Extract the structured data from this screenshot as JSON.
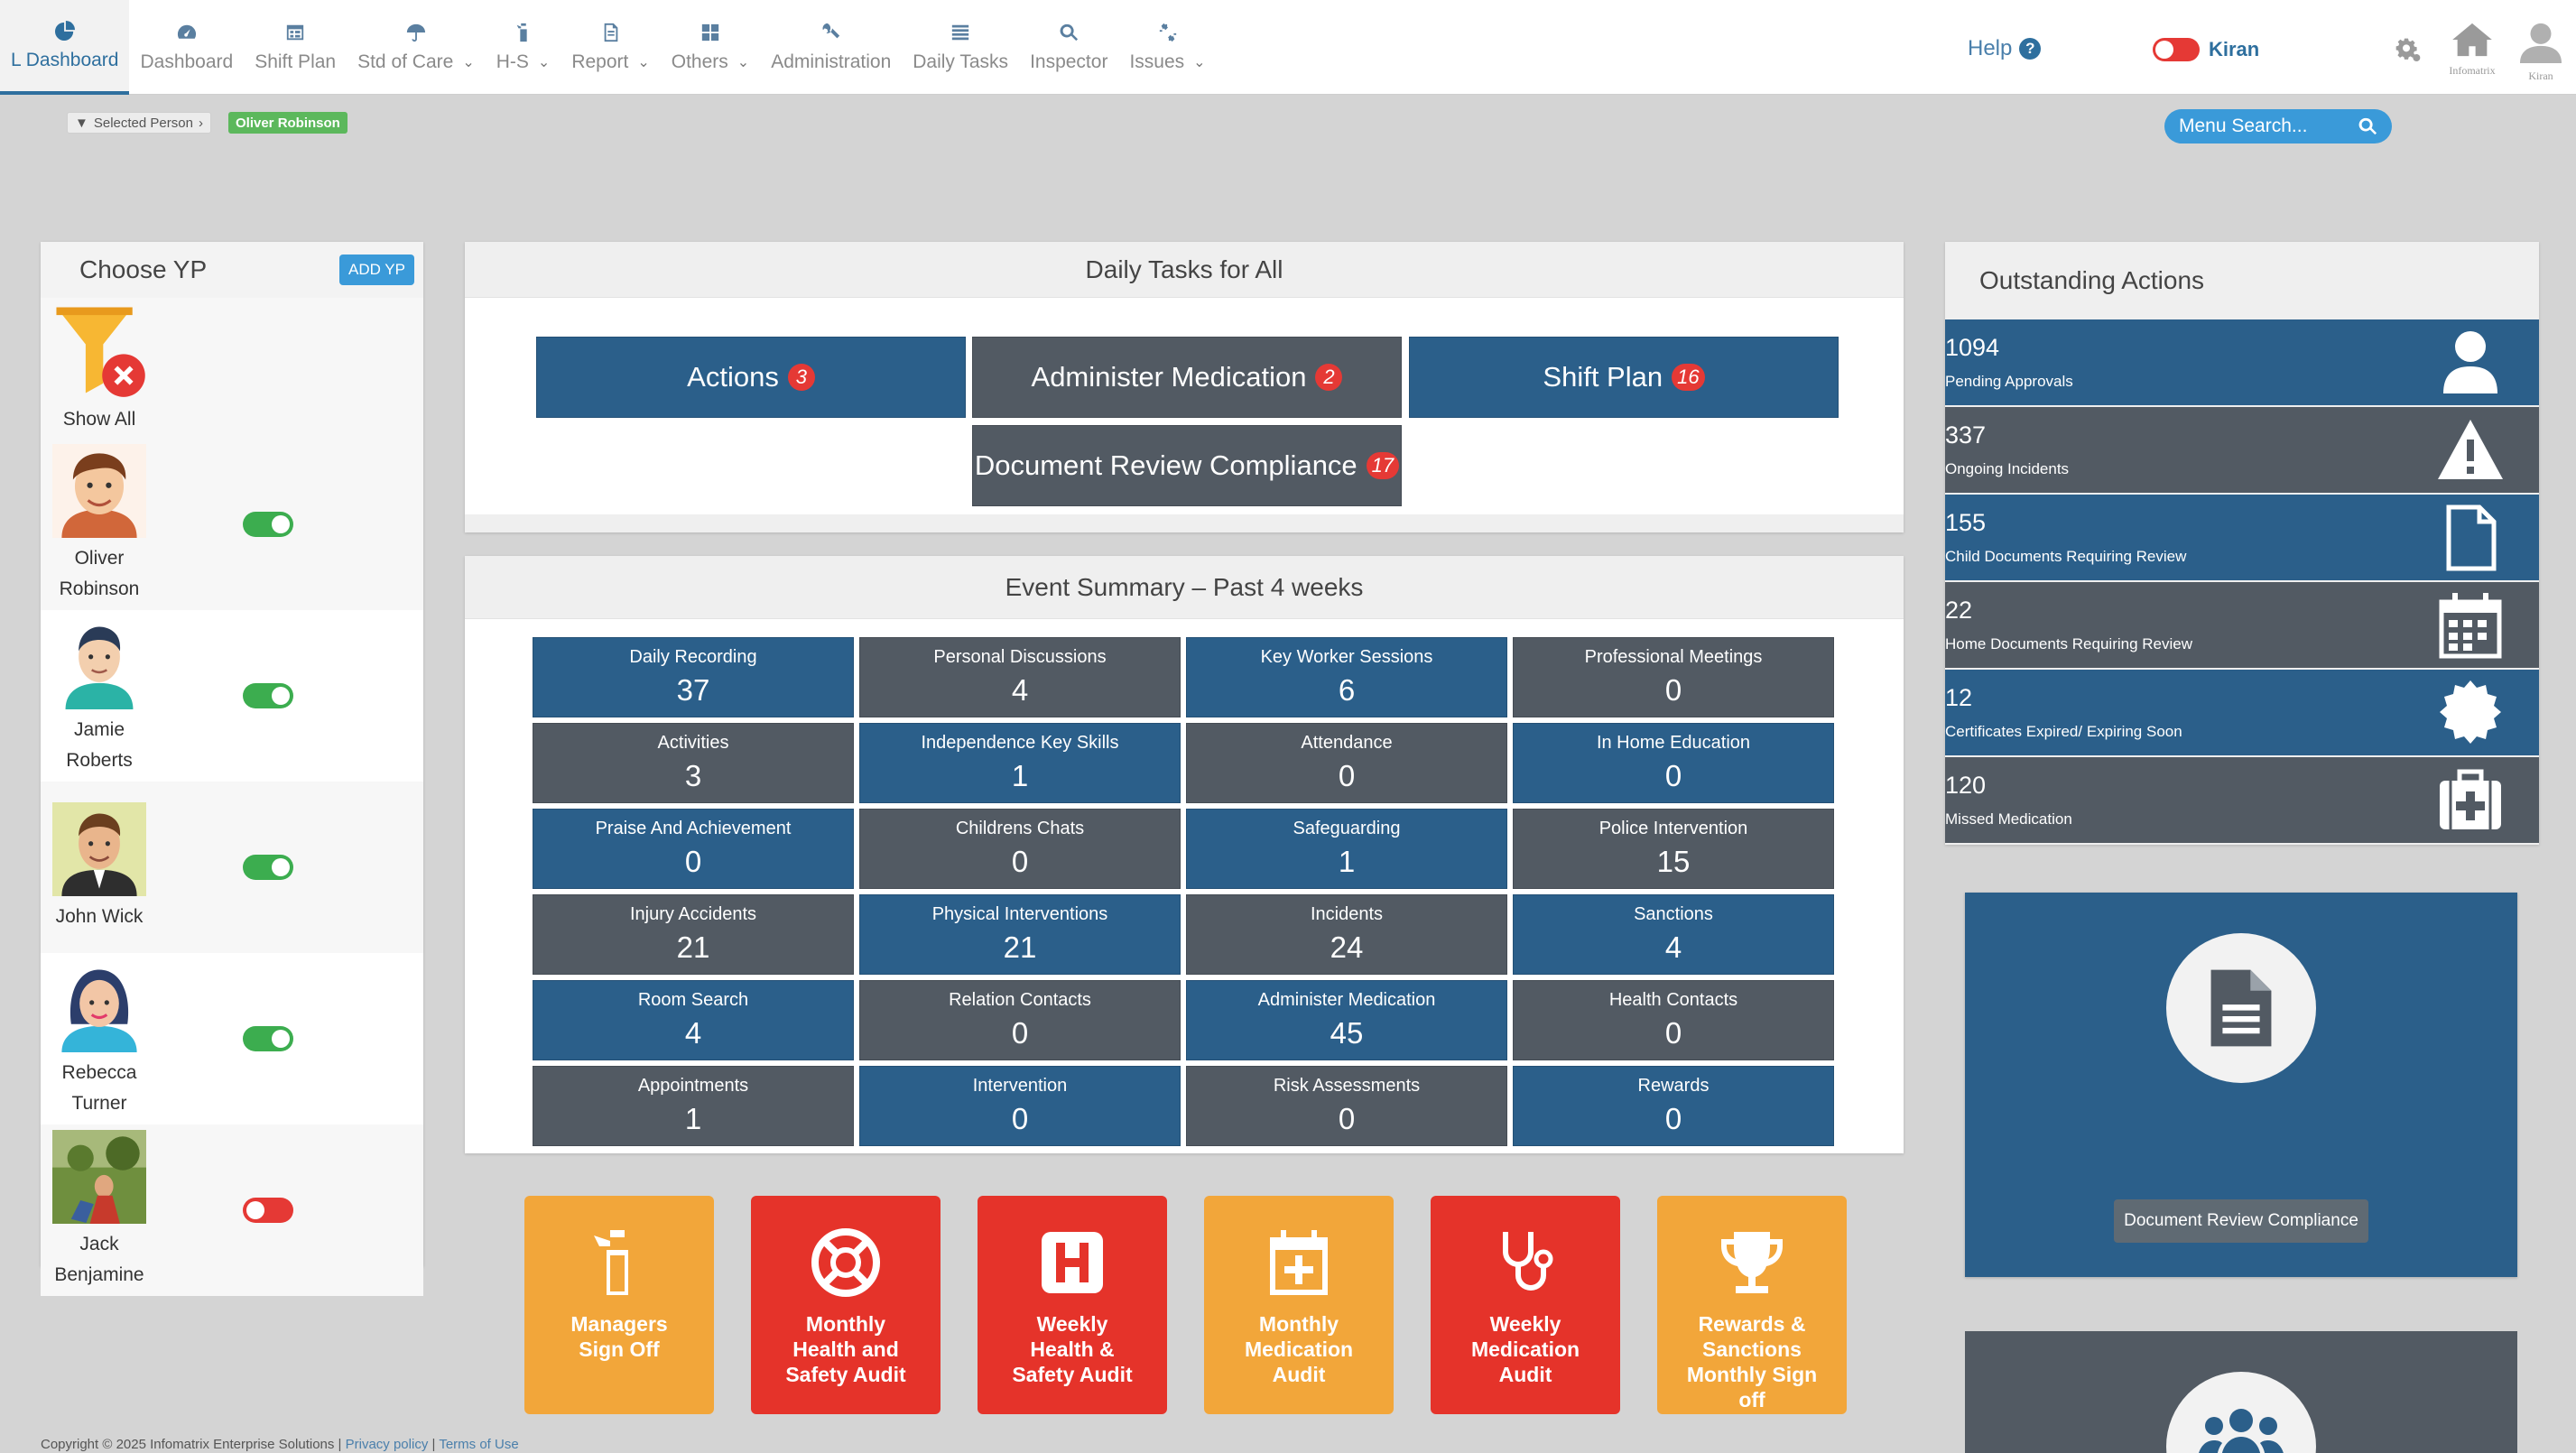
{
  "nav": {
    "items": [
      {
        "label": "L Dashboard",
        "icon": "pie-chart-icon",
        "caret": false,
        "active": true
      },
      {
        "label": "Dashboard",
        "icon": "dashboard-gauge-icon",
        "caret": false,
        "active": false
      },
      {
        "label": "Shift Plan",
        "icon": "calendar-grid-icon",
        "caret": false,
        "active": false
      },
      {
        "label": "Std of Care",
        "icon": "umbrella-icon",
        "caret": true,
        "active": false
      },
      {
        "label": "H-S",
        "icon": "fire-extinguisher-icon",
        "caret": true,
        "active": false
      },
      {
        "label": "Report",
        "icon": "document-icon",
        "caret": true,
        "active": false
      },
      {
        "label": "Others",
        "icon": "grid-icon",
        "caret": true,
        "active": false
      },
      {
        "label": "Administration",
        "icon": "wrench-icon",
        "caret": false,
        "active": false
      },
      {
        "label": "Daily Tasks",
        "icon": "list-icon",
        "caret": false,
        "active": false
      },
      {
        "label": "Inspector",
        "icon": "magnifier-icon",
        "caret": false,
        "active": false
      },
      {
        "label": "Issues",
        "icon": "link-broken-icon",
        "caret": true,
        "active": false
      }
    ],
    "help_label": "Help",
    "user_name": "Kiran",
    "home_label": "Infomatrix",
    "avatar_label": "Kiran"
  },
  "filter": {
    "selected_label": "Selected Person",
    "selected_name": "Oliver Robinson"
  },
  "search": {
    "placeholder": "Menu Search..."
  },
  "choose_yp": {
    "title": "Choose YP",
    "add_label": "ADD YP",
    "show_all_label": "Show All",
    "people": [
      {
        "name_line1": "Oliver",
        "name_line2": "Robinson",
        "active": true
      },
      {
        "name_line1": "Jamie",
        "name_line2": "Roberts",
        "active": true
      },
      {
        "name_line1": "John Wick",
        "name_line2": "",
        "active": true
      },
      {
        "name_line1": "Rebecca",
        "name_line2": "Turner",
        "active": true
      },
      {
        "name_line1": "Jack",
        "name_line2": "Benjamine",
        "active": false
      }
    ]
  },
  "daily_tasks": {
    "title": "Daily Tasks for All",
    "buttons": [
      {
        "label": "Actions",
        "count": "3"
      },
      {
        "label": "Administer Medication",
        "count": "2"
      },
      {
        "label": "Shift Plan",
        "count": "16"
      },
      {
        "label": "Document Review Compliance",
        "count": "17"
      }
    ]
  },
  "event_summary": {
    "title": "Event Summary – Past 4 weeks",
    "tiles": [
      {
        "label": "Daily Recording",
        "value": "37"
      },
      {
        "label": "Personal Discussions",
        "value": "4"
      },
      {
        "label": "Key Worker Sessions",
        "value": "6"
      },
      {
        "label": "Professional Meetings",
        "value": "0"
      },
      {
        "label": "Activities",
        "value": "3"
      },
      {
        "label": "Independence Key Skills",
        "value": "1"
      },
      {
        "label": "Attendance",
        "value": "0"
      },
      {
        "label": "In Home Education",
        "value": "0"
      },
      {
        "label": "Praise And Achievement",
        "value": "0"
      },
      {
        "label": "Childrens Chats",
        "value": "0"
      },
      {
        "label": "Safeguarding",
        "value": "1"
      },
      {
        "label": "Police Intervention",
        "value": "15"
      },
      {
        "label": "Injury Accidents",
        "value": "21"
      },
      {
        "label": "Physical Interventions",
        "value": "21"
      },
      {
        "label": "Incidents",
        "value": "24"
      },
      {
        "label": "Sanctions",
        "value": "4"
      },
      {
        "label": "Room Search",
        "value": "4"
      },
      {
        "label": "Relation Contacts",
        "value": "0"
      },
      {
        "label": "Administer Medication",
        "value": "45"
      },
      {
        "label": "Health Contacts",
        "value": "0"
      },
      {
        "label": "Appointments",
        "value": "1"
      },
      {
        "label": "Intervention",
        "value": "0"
      },
      {
        "label": "Risk Assessments",
        "value": "0"
      },
      {
        "label": "Rewards",
        "value": "0"
      }
    ]
  },
  "quick_links": [
    {
      "line1": "Managers",
      "line2": "Sign Off",
      "line3": "",
      "line4": "",
      "icon": "fire-extinguisher-icon",
      "color": "#f2a63a"
    },
    {
      "line1": "Monthly",
      "line2": "Health and",
      "line3": "Safety Audit",
      "line4": "",
      "icon": "lifebuoy-icon",
      "color": "#e5332a"
    },
    {
      "line1": "Weekly",
      "line2": "Health &",
      "line3": "Safety Audit",
      "line4": "",
      "icon": "hospital-h-icon",
      "color": "#e5332a"
    },
    {
      "line1": "Monthly",
      "line2": "Medication",
      "line3": "Audit",
      "line4": "",
      "icon": "calendar-plus-icon",
      "color": "#f2a63a"
    },
    {
      "line1": "Weekly",
      "line2": "Medication",
      "line3": "Audit",
      "line4": "",
      "icon": "stethoscope-icon",
      "color": "#e5332a"
    },
    {
      "line1": "Rewards &",
      "line2": "Sanctions",
      "line3": "Monthly Sign",
      "line4": "off",
      "icon": "trophy-icon",
      "color": "#f2a63a"
    }
  ],
  "outstanding": {
    "title": "Outstanding Actions",
    "rows": [
      {
        "count": "1094",
        "label": "Pending Approvals",
        "icon": "user-icon"
      },
      {
        "count": "337",
        "label": "Ongoing Incidents",
        "icon": "warning-icon"
      },
      {
        "count": "155",
        "label": "Child Documents Requiring Review",
        "icon": "file-icon"
      },
      {
        "count": "22",
        "label": "Home Documents Requiring Review",
        "icon": "calendar-icon"
      },
      {
        "count": "12",
        "label": "Certificates Expired/ Expiring Soon",
        "icon": "certificate-icon"
      },
      {
        "count": "120",
        "label": "Missed Medication",
        "icon": "medkit-icon"
      }
    ]
  },
  "doc_card": {
    "button_label": "Document Review Compliance"
  },
  "footer": {
    "copyright": "Copyright © 2025 Infomatrix Enterprise Solutions |",
    "privacy": "Privacy policy",
    "separator": "|",
    "terms": "Terms of Use"
  },
  "colors": {
    "blue": "#2b5f8a",
    "gray": "#525a63",
    "orange": "#f2a63a",
    "red": "#e5332a",
    "green_toggle": "#3cad4f",
    "accent": "#3a9ad9"
  }
}
